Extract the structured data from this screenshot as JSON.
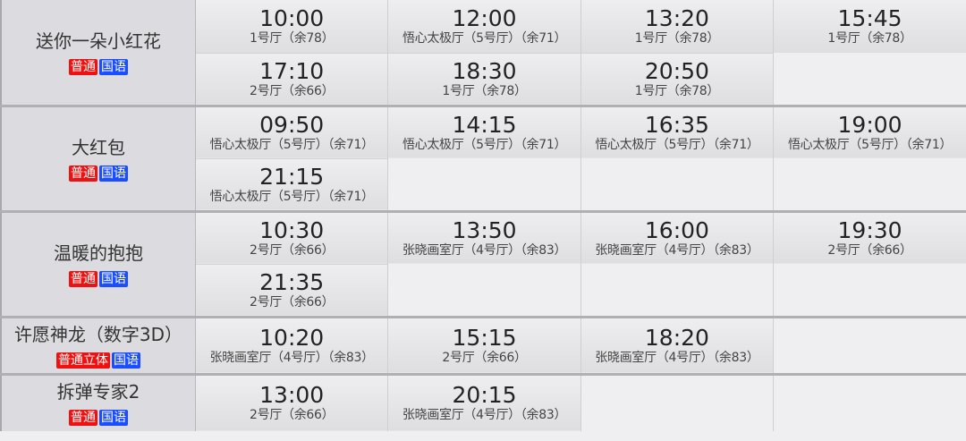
{
  "colors": {
    "tag_format": "#ee1111",
    "tag_language": "#1a4dff"
  },
  "films": [
    {
      "name": "送你一朵小红花",
      "format": "普通",
      "language": "国语",
      "sessions": [
        {
          "time": "10:00",
          "hall": "1号厅（余78）"
        },
        {
          "time": "12:00",
          "hall": "悟心太极厅（5号厅）（余71）"
        },
        {
          "time": "13:20",
          "hall": "1号厅（余78）"
        },
        {
          "time": "15:45",
          "hall": "1号厅（余78）"
        },
        {
          "time": "17:10",
          "hall": "2号厅（余66）"
        },
        {
          "time": "18:30",
          "hall": "1号厅（余78）"
        },
        {
          "time": "20:50",
          "hall": "1号厅（余78）"
        }
      ]
    },
    {
      "name": "大红包",
      "format": "普通",
      "language": "国语",
      "sessions": [
        {
          "time": "09:50",
          "hall": "悟心太极厅（5号厅）（余71）"
        },
        {
          "time": "14:15",
          "hall": "悟心太极厅（5号厅）（余71）"
        },
        {
          "time": "16:35",
          "hall": "悟心太极厅（5号厅）（余71）"
        },
        {
          "time": "19:00",
          "hall": "悟心太极厅（5号厅）（余71）"
        },
        {
          "time": "21:15",
          "hall": "悟心太极厅（5号厅）（余71）"
        }
      ]
    },
    {
      "name": "温暖的抱抱",
      "format": "普通",
      "language": "国语",
      "sessions": [
        {
          "time": "10:30",
          "hall": "2号厅（余66）"
        },
        {
          "time": "13:50",
          "hall": "张晓画室厅（4号厅）（余83）"
        },
        {
          "time": "16:00",
          "hall": "张晓画室厅（4号厅）（余83）"
        },
        {
          "time": "19:30",
          "hall": "2号厅（余66）"
        },
        {
          "time": "21:35",
          "hall": "2号厅（余66）"
        }
      ]
    },
    {
      "name": "许愿神龙（数字3D）",
      "format": "普通立体",
      "language": "国语",
      "sessions": [
        {
          "time": "10:20",
          "hall": "张晓画室厅（4号厅）（余83）"
        },
        {
          "time": "15:15",
          "hall": "2号厅（余66）"
        },
        {
          "time": "18:20",
          "hall": "张晓画室厅（4号厅）（余83）"
        }
      ]
    },
    {
      "name": "拆弹专家2",
      "format": "普通",
      "language": "国语",
      "sessions": [
        {
          "time": "13:00",
          "hall": "2号厅（余66）"
        },
        {
          "time": "20:15",
          "hall": "张晓画室厅（4号厅）（余83）"
        }
      ]
    }
  ]
}
